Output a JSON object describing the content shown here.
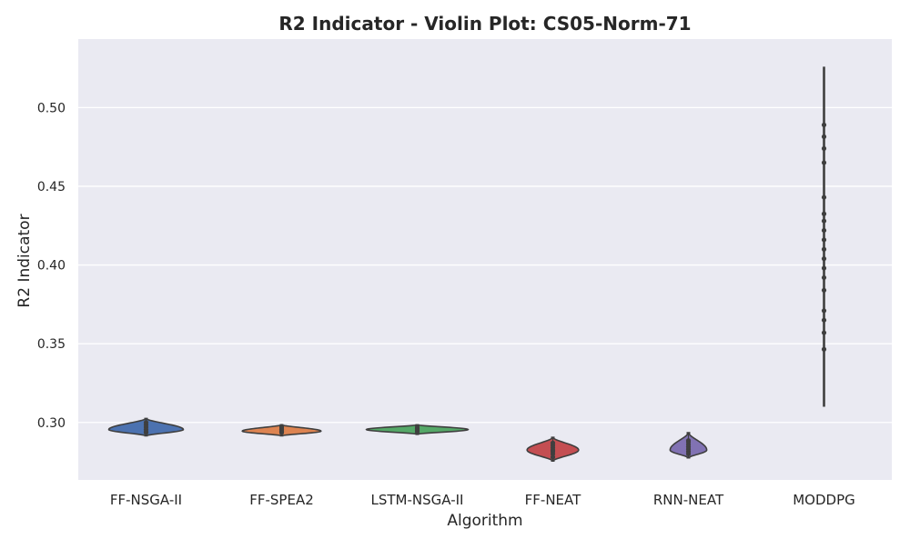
{
  "chart_data": {
    "type": "violin",
    "title": "R2 Indicator - Violin Plot: CS05-Norm-71",
    "xlabel": "Algorithm",
    "ylabel": "R2 Indicator",
    "ylim": [
      0.2635,
      0.5435
    ],
    "yticks": [
      "0.30",
      "0.35",
      "0.40",
      "0.45",
      "0.50"
    ],
    "ytick_values": [
      0.3,
      0.35,
      0.4,
      0.45,
      0.5
    ],
    "grid": true,
    "categories": [
      "FF-NSGA-II",
      "FF-SPEA2",
      "LSTM-NSGA-II",
      "FF-NEAT",
      "RNN-NEAT",
      "MODDPG"
    ],
    "colors": [
      "#4c72b0",
      "#dd8452",
      "#55a868",
      "#c44e52",
      "#8172b3",
      "#cccccc"
    ],
    "violins": [
      {
        "min": 0.2915,
        "max": 0.3025,
        "center": 0.2955,
        "halfwidth": 0.55,
        "points": [
          0.294,
          0.2955,
          0.297,
          0.2985,
          0.3,
          0.2935
        ]
      },
      {
        "min": 0.2915,
        "max": 0.2985,
        "center": 0.2945,
        "halfwidth": 0.58,
        "points": [
          0.2935,
          0.2945,
          0.2955,
          0.2965,
          0.2975
        ]
      },
      {
        "min": 0.2925,
        "max": 0.2985,
        "center": 0.2955,
        "halfwidth": 0.75,
        "points": [
          0.294,
          0.295,
          0.296,
          0.297
        ]
      },
      {
        "min": 0.2755,
        "max": 0.2905,
        "center": 0.2825,
        "halfwidth": 0.38,
        "points": [
          0.278,
          0.28,
          0.2815,
          0.2825,
          0.284,
          0.2855,
          0.287
        ]
      },
      {
        "min": 0.2775,
        "max": 0.2935,
        "center": 0.2825,
        "halfwidth": 0.27,
        "points": [
          0.28,
          0.2815,
          0.283,
          0.2845,
          0.286,
          0.2875,
          0.2885
        ]
      },
      {
        "min": 0.31,
        "max": 0.526,
        "center": 0.4,
        "halfwidth": 0.0,
        "points": [
          0.3465,
          0.357,
          0.365,
          0.371,
          0.384,
          0.392,
          0.398,
          0.404,
          0.41,
          0.416,
          0.422,
          0.428,
          0.4325,
          0.443,
          0.465,
          0.474,
          0.4815,
          0.489
        ]
      }
    ]
  }
}
